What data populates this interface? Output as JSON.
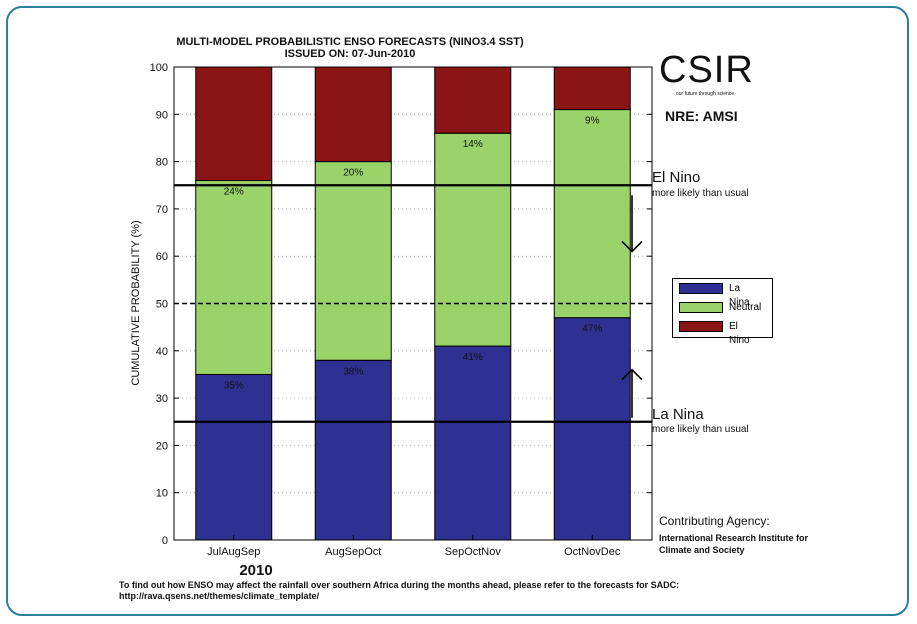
{
  "header": {
    "title": "MULTI-MODEL PROBABILISTIC ENSO FORECASTS (NINO3.4 SST)",
    "issued": "ISSUED ON: 07-Jun-2010"
  },
  "branding": {
    "logo_text": "CSIR",
    "tagline": "our future through science",
    "subgroup": "NRE: AMSI"
  },
  "annotations": {
    "el_nino_title": "El Nino",
    "el_nino_sub": "more likely than usual",
    "la_nina_title": "La Nina",
    "la_nina_sub": "more likely than usual",
    "year": "2010"
  },
  "contributing": {
    "label": "Contributing Agency:",
    "name": "International Research Institute for Climate and Society"
  },
  "footer": {
    "line1": "To find out how ENSO may affect the rainfall over southern Africa during the months ahead, please refer to the forecasts for SADC:",
    "line2": "http://rava.qsens.net/themes/climate_template/"
  },
  "legend": {
    "position": "right",
    "items": [
      {
        "label": "La Nina",
        "color": "#2e3192"
      },
      {
        "label": "Neutral",
        "color": "#99d36a"
      },
      {
        "label": "El Nino",
        "color": "#8b1414"
      }
    ]
  },
  "chart_data": {
    "type": "bar",
    "stacked": true,
    "ylabel": "CUMULATIVE PROBABILITY (%)",
    "xlabel": "",
    "ylim": [
      0,
      100
    ],
    "yticks": [
      0,
      10,
      20,
      30,
      40,
      50,
      60,
      70,
      80,
      90,
      100
    ],
    "grid": "dotted",
    "categories": [
      "JulAugSep",
      "AugSepOct",
      "SepOctNov",
      "OctNovDec"
    ],
    "series": [
      {
        "name": "La Nina",
        "color": "#2e3192",
        "values": [
          35,
          38,
          41,
          47
        ],
        "labels": [
          "35%",
          "38%",
          "41%",
          "47%"
        ]
      },
      {
        "name": "Neutral",
        "color": "#99d36a",
        "values": [
          41,
          42,
          45,
          44
        ]
      },
      {
        "name": "El Nino",
        "color": "#8b1414",
        "values": [
          24,
          20,
          14,
          9
        ],
        "labels": [
          "24%",
          "20%",
          "14%",
          "9%"
        ]
      }
    ],
    "reference_lines": [
      {
        "y": 75,
        "style": "solid"
      },
      {
        "y": 50,
        "style": "dashed"
      },
      {
        "y": 25,
        "style": "solid"
      }
    ]
  }
}
